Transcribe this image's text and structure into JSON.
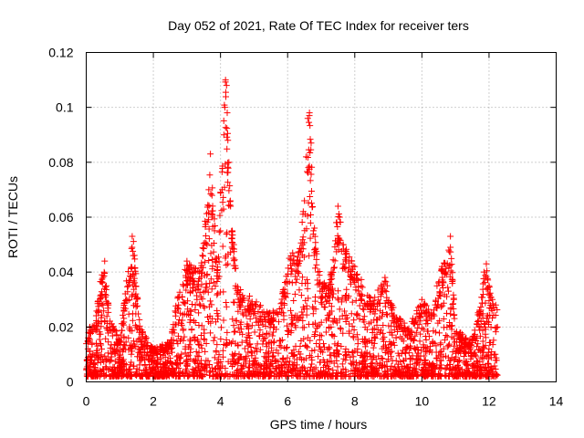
{
  "chart_data": {
    "type": "scatter",
    "title": "Day 052 of 2021, Rate Of TEC Index for receiver ters",
    "xlabel": "GPS time / hours",
    "ylabel": "ROTI / TECUs",
    "xlim": [
      0,
      14
    ],
    "ylim": [
      0,
      0.12
    ],
    "x_ticks": [
      0,
      2,
      4,
      6,
      8,
      10,
      12,
      14
    ],
    "x_tick_labels": [
      "0",
      "2",
      "4",
      "6",
      "8",
      "10",
      "12",
      "14"
    ],
    "y_ticks": [
      0,
      0.02,
      0.04,
      0.06,
      0.08,
      0.1,
      0.12
    ],
    "y_tick_labels": [
      "0",
      "0.02",
      "0.04",
      "0.06",
      "0.08",
      "0.1",
      "0.12"
    ],
    "grid": true,
    "marker": "+",
    "color": "#ff0000",
    "x_range_of_data": [
      0,
      12.25
    ],
    "envelope": [
      {
        "x": 0.0,
        "y": 0.015
      },
      {
        "x": 0.1,
        "y": 0.02
      },
      {
        "x": 0.3,
        "y": 0.025
      },
      {
        "x": 0.5,
        "y": 0.044
      },
      {
        "x": 0.7,
        "y": 0.025
      },
      {
        "x": 1.0,
        "y": 0.015
      },
      {
        "x": 1.2,
        "y": 0.038
      },
      {
        "x": 1.4,
        "y": 0.053
      },
      {
        "x": 1.6,
        "y": 0.02
      },
      {
        "x": 2.0,
        "y": 0.012
      },
      {
        "x": 2.5,
        "y": 0.015
      },
      {
        "x": 2.7,
        "y": 0.03
      },
      {
        "x": 3.0,
        "y": 0.044
      },
      {
        "x": 3.4,
        "y": 0.04
      },
      {
        "x": 3.7,
        "y": 0.083
      },
      {
        "x": 3.9,
        "y": 0.045
      },
      {
        "x": 4.15,
        "y": 0.11
      },
      {
        "x": 4.3,
        "y": 0.064
      },
      {
        "x": 4.5,
        "y": 0.035
      },
      {
        "x": 5.0,
        "y": 0.03
      },
      {
        "x": 5.5,
        "y": 0.025
      },
      {
        "x": 5.8,
        "y": 0.03
      },
      {
        "x": 6.1,
        "y": 0.047
      },
      {
        "x": 6.3,
        "y": 0.045
      },
      {
        "x": 6.5,
        "y": 0.066
      },
      {
        "x": 6.65,
        "y": 0.098
      },
      {
        "x": 6.8,
        "y": 0.056
      },
      {
        "x": 7.0,
        "y": 0.035
      },
      {
        "x": 7.3,
        "y": 0.04
      },
      {
        "x": 7.5,
        "y": 0.064
      },
      {
        "x": 7.7,
        "y": 0.05
      },
      {
        "x": 8.0,
        "y": 0.042
      },
      {
        "x": 8.5,
        "y": 0.03
      },
      {
        "x": 8.9,
        "y": 0.038
      },
      {
        "x": 9.2,
        "y": 0.025
      },
      {
        "x": 9.6,
        "y": 0.02
      },
      {
        "x": 10.0,
        "y": 0.03
      },
      {
        "x": 10.3,
        "y": 0.025
      },
      {
        "x": 10.6,
        "y": 0.042
      },
      {
        "x": 10.85,
        "y": 0.053
      },
      {
        "x": 11.0,
        "y": 0.02
      },
      {
        "x": 11.4,
        "y": 0.015
      },
      {
        "x": 11.6,
        "y": 0.02
      },
      {
        "x": 11.9,
        "y": 0.043
      },
      {
        "x": 12.1,
        "y": 0.03
      },
      {
        "x": 12.25,
        "y": 0.03
      }
    ],
    "points": [
      [
        0.02,
        0.008
      ],
      [
        0.05,
        0.012
      ],
      [
        0.12,
        0.018
      ],
      [
        0.2,
        0.01
      ],
      [
        0.3,
        0.014
      ],
      [
        0.45,
        0.022
      ],
      [
        0.5,
        0.038
      ],
      [
        0.55,
        0.044
      ],
      [
        0.6,
        0.035
      ],
      [
        0.7,
        0.02
      ],
      [
        0.85,
        0.012
      ],
      [
        1.0,
        0.009
      ],
      [
        1.2,
        0.03
      ],
      [
        1.3,
        0.037
      ],
      [
        1.37,
        0.053
      ],
      [
        1.4,
        0.046
      ],
      [
        1.5,
        0.02
      ],
      [
        1.7,
        0.012
      ],
      [
        2.0,
        0.008
      ],
      [
        2.3,
        0.011
      ],
      [
        2.6,
        0.014
      ],
      [
        2.75,
        0.028
      ],
      [
        2.9,
        0.035
      ],
      [
        3.0,
        0.044
      ],
      [
        3.1,
        0.038
      ],
      [
        3.3,
        0.03
      ],
      [
        3.45,
        0.04
      ],
      [
        3.6,
        0.05
      ],
      [
        3.65,
        0.07
      ],
      [
        3.7,
        0.083
      ],
      [
        3.75,
        0.06
      ],
      [
        3.85,
        0.045
      ],
      [
        4.0,
        0.055
      ],
      [
        4.05,
        0.07
      ],
      [
        4.1,
        0.09
      ],
      [
        4.13,
        0.1
      ],
      [
        4.15,
        0.11
      ],
      [
        4.18,
        0.108
      ],
      [
        4.2,
        0.098
      ],
      [
        4.22,
        0.088
      ],
      [
        4.25,
        0.08
      ],
      [
        4.3,
        0.064
      ],
      [
        4.35,
        0.055
      ],
      [
        4.45,
        0.035
      ],
      [
        4.6,
        0.03
      ],
      [
        4.9,
        0.028
      ],
      [
        5.2,
        0.022
      ],
      [
        5.6,
        0.02
      ],
      [
        5.9,
        0.028
      ],
      [
        6.05,
        0.045
      ],
      [
        6.15,
        0.047
      ],
      [
        6.3,
        0.04
      ],
      [
        6.45,
        0.05
      ],
      [
        6.5,
        0.066
      ],
      [
        6.55,
        0.082
      ],
      [
        6.6,
        0.096
      ],
      [
        6.65,
        0.098
      ],
      [
        6.7,
        0.087
      ],
      [
        6.8,
        0.056
      ],
      [
        6.9,
        0.04
      ],
      [
        7.1,
        0.035
      ],
      [
        7.3,
        0.04
      ],
      [
        7.45,
        0.058
      ],
      [
        7.5,
        0.064
      ],
      [
        7.55,
        0.06
      ],
      [
        7.65,
        0.05
      ],
      [
        7.8,
        0.04
      ],
      [
        8.0,
        0.042
      ],
      [
        8.2,
        0.03
      ],
      [
        8.5,
        0.028
      ],
      [
        8.8,
        0.034
      ],
      [
        8.9,
        0.038
      ],
      [
        9.1,
        0.025
      ],
      [
        9.4,
        0.02
      ],
      [
        9.7,
        0.018
      ],
      [
        10.0,
        0.03
      ],
      [
        10.2,
        0.025
      ],
      [
        10.45,
        0.035
      ],
      [
        10.6,
        0.042
      ],
      [
        10.7,
        0.04
      ],
      [
        10.8,
        0.048
      ],
      [
        10.85,
        0.053
      ],
      [
        10.95,
        0.03
      ],
      [
        11.2,
        0.015
      ],
      [
        11.5,
        0.015
      ],
      [
        11.7,
        0.02
      ],
      [
        11.85,
        0.04
      ],
      [
        11.92,
        0.043
      ],
      [
        12.0,
        0.035
      ],
      [
        12.1,
        0.03
      ],
      [
        12.2,
        0.028
      ],
      [
        12.25,
        0.02
      ]
    ]
  }
}
